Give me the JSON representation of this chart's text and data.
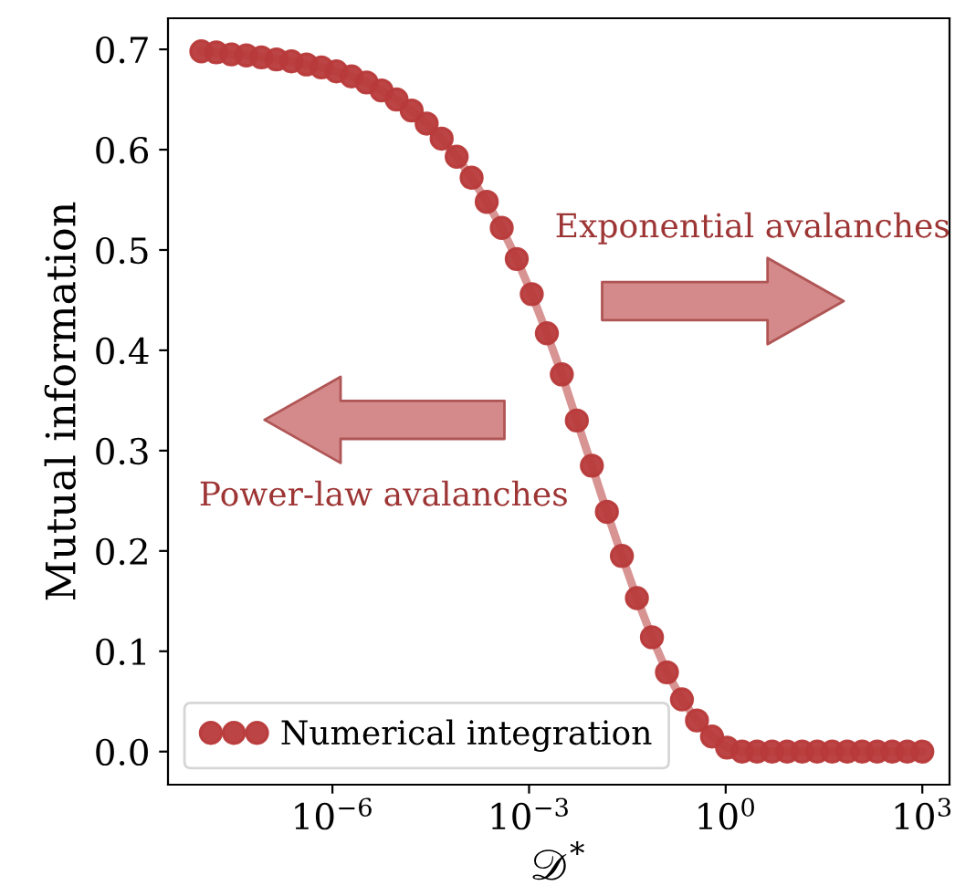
{
  "chart_data": {
    "type": "line",
    "xlabel": "𝒟$^{*}$",
    "ylabel": "Mutual information",
    "log": "x",
    "marker": "circle",
    "legend": "bottom left",
    "grid": false,
    "x": [
      1e-08,
      1.69e-08,
      2.87e-08,
      4.87e-08,
      8.25e-08,
      1.4e-07,
      2.37e-07,
      4.02e-07,
      6.81e-07,
      1.15e-06,
      1.96e-06,
      3.32e-06,
      5.62e-06,
      9.53e-06,
      1.62e-05,
      2.74e-05,
      4.64e-05,
      7.87e-05,
      0.000133,
      0.000226,
      0.000383,
      0.000649,
      0.0011,
      0.00187,
      0.00316,
      0.00536,
      0.00909,
      0.0154,
      0.0261,
      0.0442,
      0.075,
      0.127,
      0.215,
      0.365,
      0.619,
      1.05,
      1.78,
      3.01,
      5.11,
      8.66,
      14.7,
      24.9,
      42.2,
      71.5,
      121,
      205,
      348,
      590,
      1000
    ],
    "series": [
      {
        "name": "Numerical integration",
        "color": "#b83a3a",
        "values": [
          0.698,
          0.697,
          0.695,
          0.694,
          0.692,
          0.69,
          0.688,
          0.685,
          0.682,
          0.678,
          0.673,
          0.667,
          0.659,
          0.65,
          0.639,
          0.626,
          0.611,
          0.593,
          0.572,
          0.548,
          0.522,
          0.491,
          0.456,
          0.417,
          0.376,
          0.33,
          0.285,
          0.239,
          0.195,
          0.153,
          0.114,
          0.079,
          0.052,
          0.031,
          0.015,
          0.004,
          0,
          0,
          0,
          0,
          0,
          0,
          0,
          0,
          0,
          0,
          0,
          0,
          0
        ]
      }
    ],
    "xlim": [
      3.1e-09,
      2600
    ],
    "xticks": [
      {
        "value": 1e-06,
        "label": "10$^{−6}$"
      },
      {
        "value": 0.001,
        "label": "10$^{−3}$"
      },
      {
        "value": 1,
        "label": "10$^{0}$"
      },
      {
        "value": 1000,
        "label": "10$^{3}$"
      }
    ],
    "ylim": [
      -0.033,
      0.731
    ],
    "yticks": [
      {
        "value": 0,
        "label": "0.0"
      },
      {
        "value": 0.1,
        "label": "0.1"
      },
      {
        "value": 0.2,
        "label": "0.2"
      },
      {
        "value": 0.3,
        "label": "0.3"
      },
      {
        "value": 0.4,
        "label": "0.4"
      },
      {
        "value": 0.5,
        "label": "0.5"
      },
      {
        "value": 0.6,
        "label": "0.6"
      },
      {
        "value": 0.7,
        "label": "0.7"
      }
    ],
    "annotations": [
      "Exponential avalanches",
      "Power-law avalanches"
    ]
  }
}
